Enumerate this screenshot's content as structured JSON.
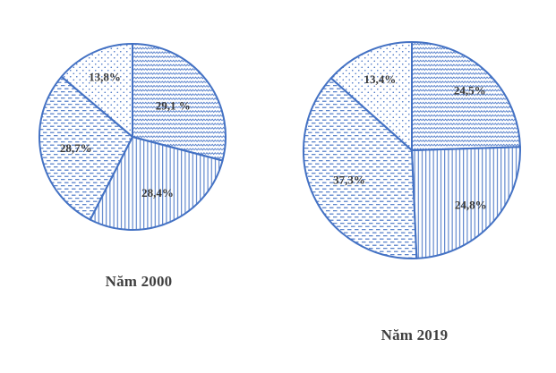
{
  "page": {
    "background": "#FFFFFF"
  },
  "colors": {
    "outline": "#4472C4",
    "pattern_stroke": "#4472C4",
    "label_text": "#3A3A3A",
    "title_text": "#3F3F3F"
  },
  "chart_data": [
    {
      "type": "pie",
      "title": "Năm 2000",
      "start_angle_deg": 0,
      "direction": "clockwise",
      "legend": "none",
      "slices": [
        {
          "label": "29,1 %",
          "value": 29.1,
          "pattern": "zigzag"
        },
        {
          "label": "28,4%",
          "value": 28.4,
          "pattern": "vertical-lines"
        },
        {
          "label": "28,7%",
          "value": 28.7,
          "pattern": "horizontal-dashes"
        },
        {
          "label": "13,8%",
          "value": 13.8,
          "pattern": "dots"
        }
      ]
    },
    {
      "type": "pie",
      "title": "Năm 2019",
      "start_angle_deg": 0,
      "direction": "clockwise",
      "legend": "none",
      "slices": [
        {
          "label": "24,5%",
          "value": 24.5,
          "pattern": "zigzag"
        },
        {
          "label": "24,8%",
          "value": 24.8,
          "pattern": "vertical-lines"
        },
        {
          "label": "37,3%",
          "value": 37.3,
          "pattern": "horizontal-dashes"
        },
        {
          "label": "13,4%",
          "value": 13.4,
          "pattern": "dots"
        }
      ]
    }
  ]
}
